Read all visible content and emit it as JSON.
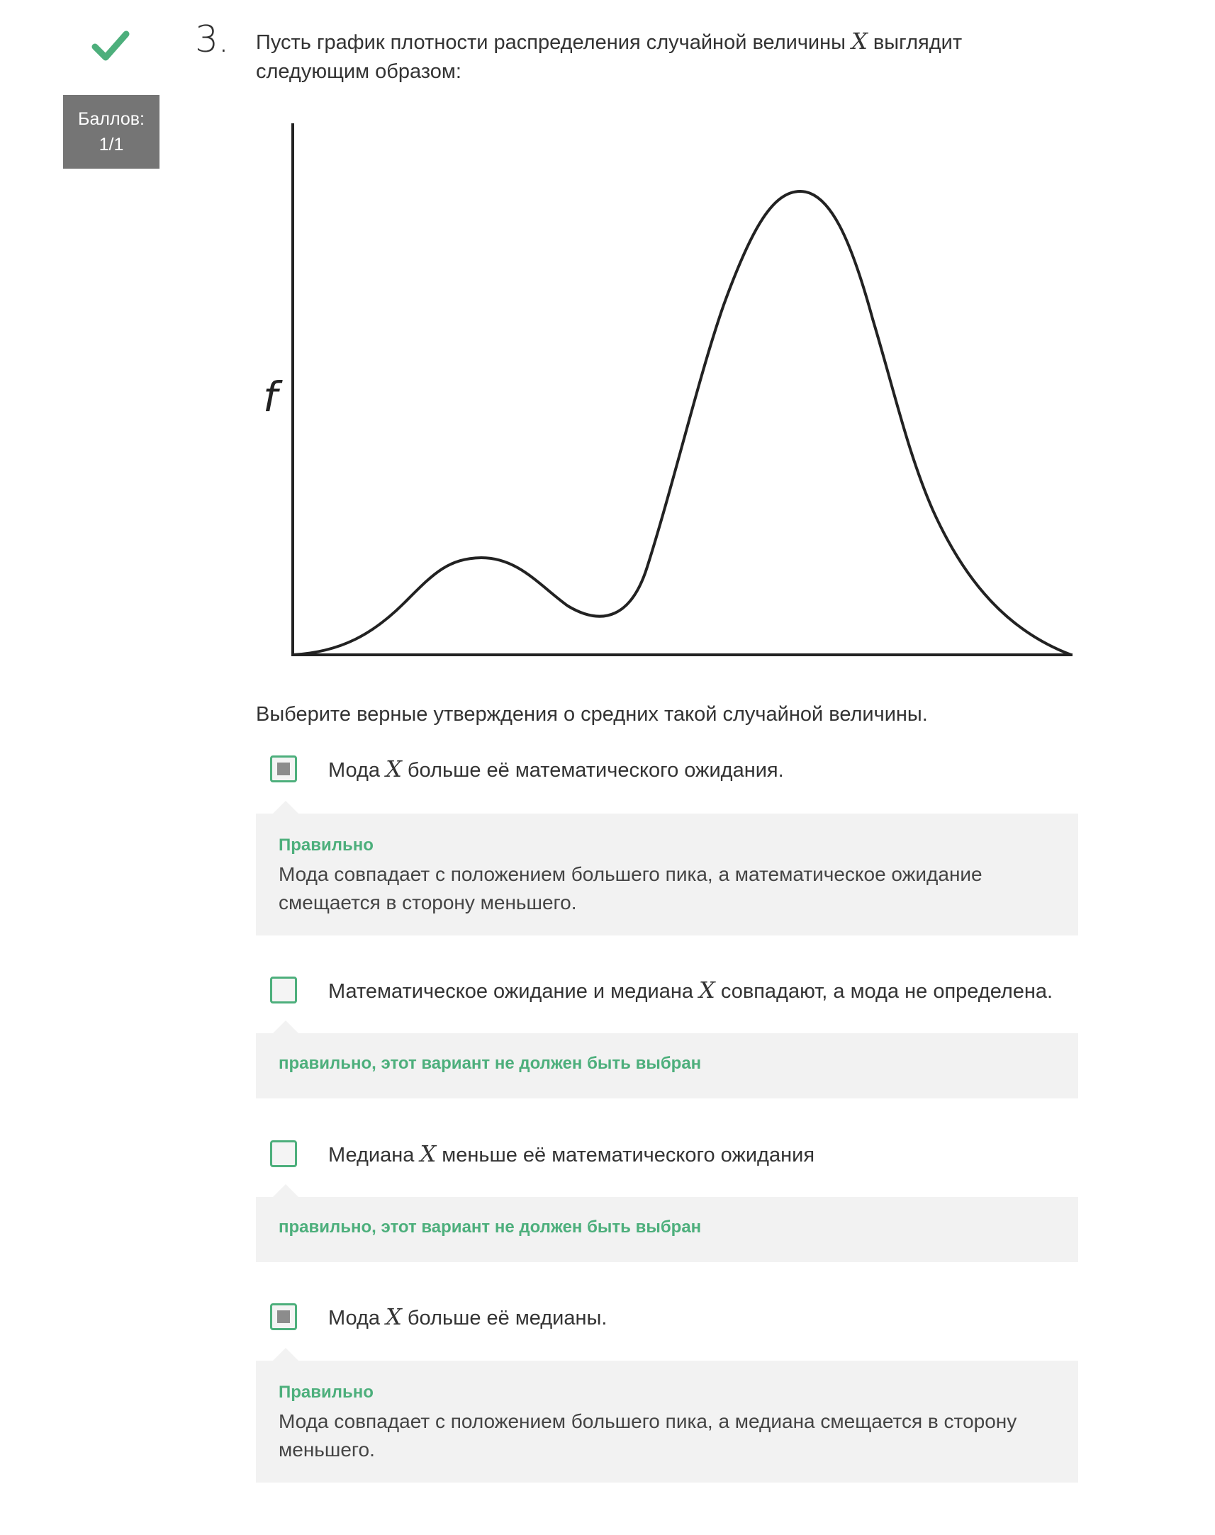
{
  "question": {
    "number": "3.",
    "status_icon": "check-icon",
    "score_label": "Баллов:",
    "score_value": "1/1",
    "text_before": "Пусть график плотности распределения случайной величины ",
    "var": "X",
    "text_after": " выглядит следующим образом:",
    "prompt": "Выберите верные утверждения о средних такой случайной величины."
  },
  "graph": {
    "y_axis_label": "f"
  },
  "options": [
    {
      "before": "Мода ",
      "var": "X",
      "after": " больше её математического ожидания.",
      "checked": true,
      "feedback_title": "Правильно",
      "feedback_text": "Мода совпадает с положением большего пика, а математическое ожидание смещается в сторону меньшего."
    },
    {
      "before": "Математическое ожидание и медиана ",
      "var": "X",
      "after": " совпадают, а мода не определена.",
      "checked": false,
      "feedback_title": "правильно, этот вариант не должен быть выбран",
      "feedback_text": ""
    },
    {
      "before": "Медиана ",
      "var": "X",
      "after": " меньше её математического ожидания",
      "checked": false,
      "feedback_title": "правильно, этот вариант не должен быть выбран",
      "feedback_text": ""
    },
    {
      "before": "Мода ",
      "var": "X",
      "after": " больше её медианы.",
      "checked": true,
      "feedback_title": "Правильно",
      "feedback_text": "Мода совпадает с положением большего пика, а медиана смещается в сторону меньшего."
    }
  ],
  "colors": {
    "correct": "#4daf7c",
    "score_bg": "#757575",
    "feedback_bg": "#f2f2f2"
  }
}
